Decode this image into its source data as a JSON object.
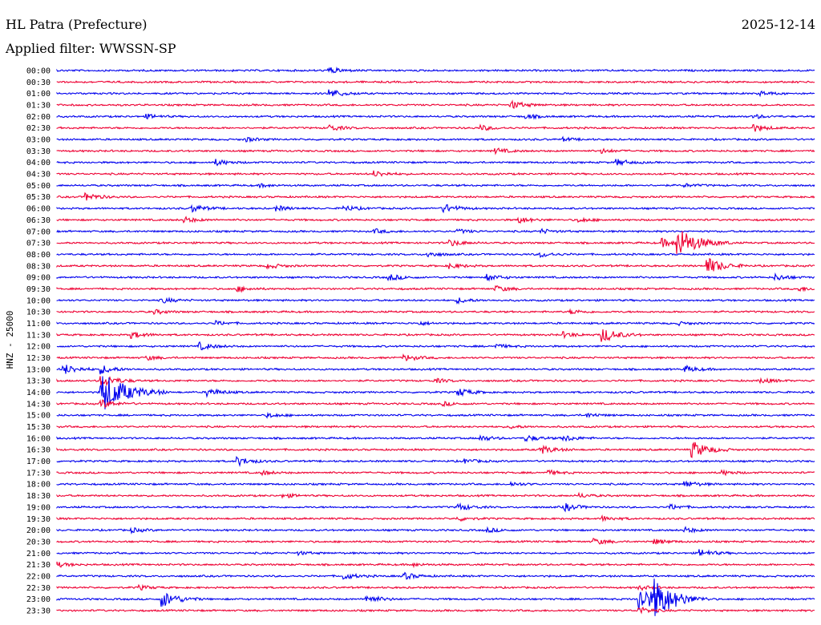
{
  "chart_data": {
    "type": "line",
    "title": "HL Patra (Prefecture)",
    "date": "2025-12-14",
    "subtitle": "Applied filter: WWSSN-SP",
    "ylabel": "HNZ - 25000",
    "xlabel": "",
    "grid": false,
    "legend": "none",
    "colors": [
      "#0000ee",
      "#ee0033"
    ],
    "rows": [
      {
        "label": "00:00",
        "events": [
          [
            0.36,
            0.6
          ]
        ]
      },
      {
        "label": "00:30",
        "events": []
      },
      {
        "label": "01:00",
        "events": [
          [
            0.36,
            0.9
          ],
          [
            0.93,
            0.4
          ]
        ]
      },
      {
        "label": "01:30",
        "events": [
          [
            0.6,
            0.8
          ]
        ]
      },
      {
        "label": "02:00",
        "events": [
          [
            0.12,
            0.4
          ],
          [
            0.62,
            0.4
          ],
          [
            0.92,
            0.4
          ]
        ]
      },
      {
        "label": "02:30",
        "events": [
          [
            0.36,
            0.6
          ],
          [
            0.56,
            0.5
          ],
          [
            0.92,
            0.7
          ]
        ]
      },
      {
        "label": "03:00",
        "events": [
          [
            0.25,
            0.4
          ],
          [
            0.67,
            0.3
          ]
        ]
      },
      {
        "label": "03:30",
        "events": [
          [
            0.58,
            0.5
          ],
          [
            0.72,
            0.4
          ]
        ]
      },
      {
        "label": "04:00",
        "events": [
          [
            0.21,
            0.6
          ],
          [
            0.74,
            0.6
          ]
        ]
      },
      {
        "label": "04:30",
        "events": [
          [
            0.42,
            0.6
          ]
        ]
      },
      {
        "label": "05:00",
        "events": [
          [
            0.27,
            0.3
          ],
          [
            0.83,
            0.3
          ]
        ]
      },
      {
        "label": "05:30",
        "events": [
          [
            0.04,
            0.7
          ]
        ]
      },
      {
        "label": "06:00",
        "events": [
          [
            0.18,
            0.7
          ],
          [
            0.29,
            0.5
          ],
          [
            0.38,
            0.5
          ],
          [
            0.51,
            0.9
          ]
        ]
      },
      {
        "label": "06:30",
        "events": [
          [
            0.17,
            0.5
          ],
          [
            0.61,
            0.6
          ],
          [
            0.69,
            0.4
          ]
        ]
      },
      {
        "label": "07:00",
        "events": [
          [
            0.42,
            0.4
          ],
          [
            0.53,
            0.4
          ],
          [
            0.64,
            0.4
          ]
        ]
      },
      {
        "label": "07:30",
        "events": [
          [
            0.52,
            0.6
          ],
          [
            0.8,
            0.8
          ],
          [
            0.82,
            3.0
          ]
        ]
      },
      {
        "label": "08:00",
        "events": [
          [
            0.49,
            0.5
          ],
          [
            0.64,
            0.5
          ]
        ]
      },
      {
        "label": "08:30",
        "events": [
          [
            0.28,
            0.5
          ],
          [
            0.52,
            0.5
          ],
          [
            0.86,
            1.6
          ]
        ]
      },
      {
        "label": "09:00",
        "events": [
          [
            0.44,
            0.6
          ],
          [
            0.57,
            0.6
          ],
          [
            0.95,
            0.6
          ]
        ]
      },
      {
        "label": "09:30",
        "events": [
          [
            0.24,
            0.5
          ],
          [
            0.58,
            0.6
          ],
          [
            0.98,
            0.4
          ]
        ]
      },
      {
        "label": "10:00",
        "events": [
          [
            0.14,
            0.5
          ],
          [
            0.53,
            0.5
          ]
        ]
      },
      {
        "label": "10:30",
        "events": [
          [
            0.13,
            0.4
          ],
          [
            0.68,
            0.4
          ]
        ]
      },
      {
        "label": "11:00",
        "events": [
          [
            0.21,
            0.4
          ],
          [
            0.48,
            0.3
          ],
          [
            0.82,
            0.3
          ]
        ]
      },
      {
        "label": "11:30",
        "events": [
          [
            0.1,
            0.6
          ],
          [
            0.67,
            0.5
          ],
          [
            0.72,
            1.5
          ]
        ]
      },
      {
        "label": "12:00",
        "events": [
          [
            0.19,
            0.7
          ],
          [
            0.58,
            0.4
          ]
        ]
      },
      {
        "label": "12:30",
        "events": [
          [
            0.12,
            0.4
          ],
          [
            0.46,
            0.6
          ]
        ]
      },
      {
        "label": "13:00",
        "events": [
          [
            0.01,
            1.0
          ],
          [
            0.06,
            0.8
          ],
          [
            0.83,
            0.6
          ]
        ]
      },
      {
        "label": "13:30",
        "events": [
          [
            0.06,
            1.2
          ],
          [
            0.93,
            0.5
          ],
          [
            0.5,
            0.4
          ]
        ]
      },
      {
        "label": "14:00",
        "events": [
          [
            0.06,
            4.2
          ],
          [
            0.2,
            0.8
          ],
          [
            0.53,
            0.8
          ]
        ]
      },
      {
        "label": "14:30",
        "events": [
          [
            0.06,
            0.8
          ],
          [
            0.51,
            0.4
          ]
        ]
      },
      {
        "label": "15:00",
        "events": [
          [
            0.28,
            0.4
          ],
          [
            0.7,
            0.4
          ]
        ]
      },
      {
        "label": "15:30",
        "events": [
          [
            0.6,
            0.3
          ]
        ]
      },
      {
        "label": "16:00",
        "events": [
          [
            0.56,
            0.5
          ],
          [
            0.62,
            0.6
          ],
          [
            0.67,
            0.6
          ]
        ]
      },
      {
        "label": "16:30",
        "events": [
          [
            0.64,
            0.8
          ],
          [
            0.84,
            1.6
          ]
        ]
      },
      {
        "label": "17:00",
        "events": [
          [
            0.24,
            0.8
          ],
          [
            0.54,
            0.4
          ]
        ]
      },
      {
        "label": "17:30",
        "events": [
          [
            0.27,
            0.4
          ],
          [
            0.65,
            0.4
          ],
          [
            0.88,
            0.4
          ]
        ]
      },
      {
        "label": "18:00",
        "events": [
          [
            0.6,
            0.4
          ],
          [
            0.83,
            0.6
          ]
        ]
      },
      {
        "label": "18:30",
        "events": [
          [
            0.3,
            0.4
          ],
          [
            0.69,
            0.4
          ]
        ]
      },
      {
        "label": "19:00",
        "events": [
          [
            0.53,
            0.7
          ],
          [
            0.67,
            0.8
          ],
          [
            0.81,
            0.5
          ]
        ]
      },
      {
        "label": "19:30",
        "events": [
          [
            0.53,
            0.4
          ],
          [
            0.72,
            0.5
          ]
        ]
      },
      {
        "label": "20:00",
        "events": [
          [
            0.1,
            0.4
          ],
          [
            0.57,
            0.4
          ],
          [
            0.83,
            0.5
          ]
        ]
      },
      {
        "label": "20:30",
        "events": [
          [
            0.71,
            0.6
          ],
          [
            0.79,
            0.5
          ]
        ]
      },
      {
        "label": "21:00",
        "events": [
          [
            0.85,
            0.7
          ],
          [
            0.32,
            0.3
          ]
        ]
      },
      {
        "label": "21:30",
        "events": [
          [
            0.0,
            0.5
          ],
          [
            0.47,
            0.3
          ]
        ]
      },
      {
        "label": "22:00",
        "events": [
          [
            0.38,
            0.6
          ],
          [
            0.46,
            0.6
          ]
        ]
      },
      {
        "label": "22:30",
        "events": [
          [
            0.11,
            0.4
          ],
          [
            0.77,
            0.4
          ]
        ]
      },
      {
        "label": "23:00",
        "events": [
          [
            0.14,
            1.6
          ],
          [
            0.41,
            0.8
          ],
          [
            0.77,
            2.6
          ],
          [
            0.79,
            3.2
          ]
        ]
      },
      {
        "label": "23:30",
        "events": [
          [
            0.77,
            0.6
          ]
        ]
      }
    ]
  }
}
